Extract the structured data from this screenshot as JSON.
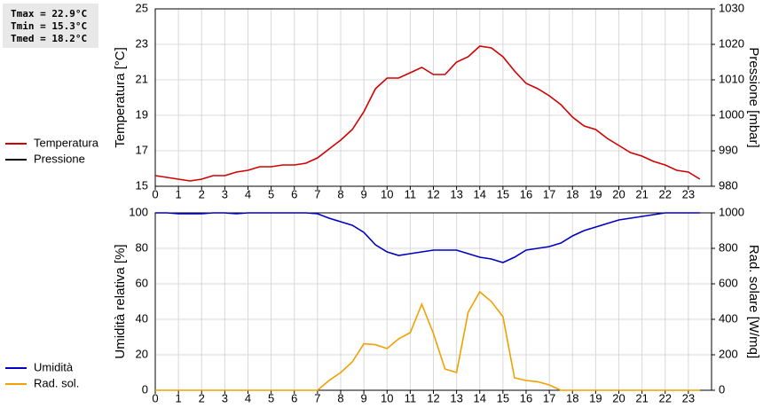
{
  "chart_data": [
    {
      "type": "line",
      "annotations": [
        "Tmax = 22.9°C",
        "Tmin = 15.3°C",
        "Tmed = 18.2°C"
      ],
      "ylabel": "Temperatura [°C]",
      "y2label": "Pressione [mbar]",
      "x": [
        0,
        0.5,
        1,
        1.5,
        2,
        2.5,
        3,
        3.5,
        4,
        4.5,
        5,
        5.5,
        6,
        6.5,
        7,
        7.5,
        8,
        8.5,
        9,
        9.5,
        10,
        10.5,
        11,
        11.5,
        12,
        12.5,
        13,
        13.5,
        14,
        14.5,
        15,
        15.5,
        16,
        16.5,
        17,
        17.5,
        18,
        18.5,
        19,
        19.5,
        20,
        20.5,
        21,
        21.5,
        22,
        22.5,
        23,
        23.5
      ],
      "xlim": [
        0,
        24
      ],
      "xticks": [
        0,
        1,
        2,
        3,
        4,
        5,
        6,
        7,
        8,
        9,
        10,
        11,
        12,
        13,
        14,
        15,
        16,
        17,
        18,
        19,
        20,
        21,
        22,
        23
      ],
      "ylim": [
        15,
        25
      ],
      "yticks": [
        15,
        17,
        19,
        21,
        23,
        25
      ],
      "y2lim": [
        980,
        1030
      ],
      "y2ticks": [
        980,
        990,
        1000,
        1010,
        1020,
        1030
      ],
      "grid": true,
      "series": [
        {
          "name": "Temperatura",
          "color": "#d00000",
          "values": [
            15.6,
            15.5,
            15.4,
            15.3,
            15.4,
            15.6,
            15.6,
            15.8,
            15.9,
            16.1,
            16.1,
            16.2,
            16.2,
            16.3,
            16.6,
            17.1,
            17.6,
            18.2,
            19.2,
            20.5,
            21.1,
            21.1,
            21.4,
            21.7,
            21.3,
            21.3,
            22.0,
            22.3,
            22.9,
            22.8,
            22.3,
            21.5,
            20.8,
            20.5,
            20.1,
            19.6,
            18.9,
            18.4,
            18.2,
            17.7,
            17.3,
            16.9,
            16.7,
            16.4,
            16.2,
            15.9,
            15.8,
            15.4
          ]
        },
        {
          "name": "Pressione",
          "color": "#000000",
          "axis": "y2",
          "values": [
            null,
            null,
            null,
            null,
            null,
            null,
            null,
            null,
            null,
            null,
            null,
            null,
            null,
            null,
            null,
            null,
            null,
            null,
            null,
            null,
            null,
            null,
            null,
            null,
            null,
            null,
            null,
            null,
            null,
            null,
            null,
            null,
            null,
            null,
            null,
            null,
            null,
            null,
            null,
            null,
            null,
            null,
            null,
            null,
            null,
            null,
            null,
            null
          ]
        }
      ]
    },
    {
      "type": "line",
      "ylabel": "Umidità relativa [%]",
      "y2label": "Rad. solare [W/mq]",
      "x": [
        0,
        0.5,
        1,
        1.5,
        2,
        2.5,
        3,
        3.5,
        4,
        4.5,
        5,
        5.5,
        6,
        6.5,
        7,
        7.5,
        8,
        8.5,
        9,
        9.5,
        10,
        10.5,
        11,
        11.5,
        12,
        12.5,
        13,
        13.5,
        14,
        14.5,
        15,
        15.5,
        16,
        16.5,
        17,
        17.5,
        18,
        18.5,
        19,
        19.5,
        20,
        20.5,
        21,
        21.5,
        22,
        22.5,
        23,
        23.5
      ],
      "xlim": [
        0,
        24
      ],
      "xticks": [
        0,
        1,
        2,
        3,
        4,
        5,
        6,
        7,
        8,
        9,
        10,
        11,
        12,
        13,
        14,
        15,
        16,
        17,
        18,
        19,
        20,
        21,
        22,
        23
      ],
      "ylim": [
        0,
        100
      ],
      "yticks": [
        0,
        20,
        40,
        60,
        80,
        100
      ],
      "y2lim": [
        0,
        1000
      ],
      "y2ticks": [
        0,
        200,
        400,
        600,
        800,
        1000
      ],
      "grid": true,
      "series": [
        {
          "name": "Umidità",
          "color": "#0000c0",
          "values": [
            100,
            100,
            99.5,
            99.5,
            99.5,
            100,
            100,
            99.5,
            100,
            100,
            100,
            100,
            100,
            100,
            99.5,
            97,
            95,
            93,
            89,
            82,
            78,
            76,
            77,
            78,
            79,
            79,
            79,
            77,
            75,
            74,
            72,
            75,
            79,
            80,
            81,
            83,
            87,
            90,
            92,
            94,
            96,
            97,
            98,
            99,
            100,
            100,
            100,
            100
          ]
        },
        {
          "name": "Rad. sol.",
          "color": "#f0a000",
          "axis": "y2",
          "values": [
            0,
            0,
            0,
            0,
            0,
            0,
            0,
            0,
            0,
            0,
            0,
            0,
            0,
            0,
            0,
            55,
            100,
            160,
            262,
            257,
            235,
            290,
            325,
            485,
            320,
            120,
            100,
            440,
            555,
            500,
            415,
            70,
            55,
            48,
            30,
            0,
            0,
            0,
            0,
            0,
            0,
            0,
            0,
            0,
            0,
            0,
            0,
            0
          ]
        }
      ]
    }
  ]
}
